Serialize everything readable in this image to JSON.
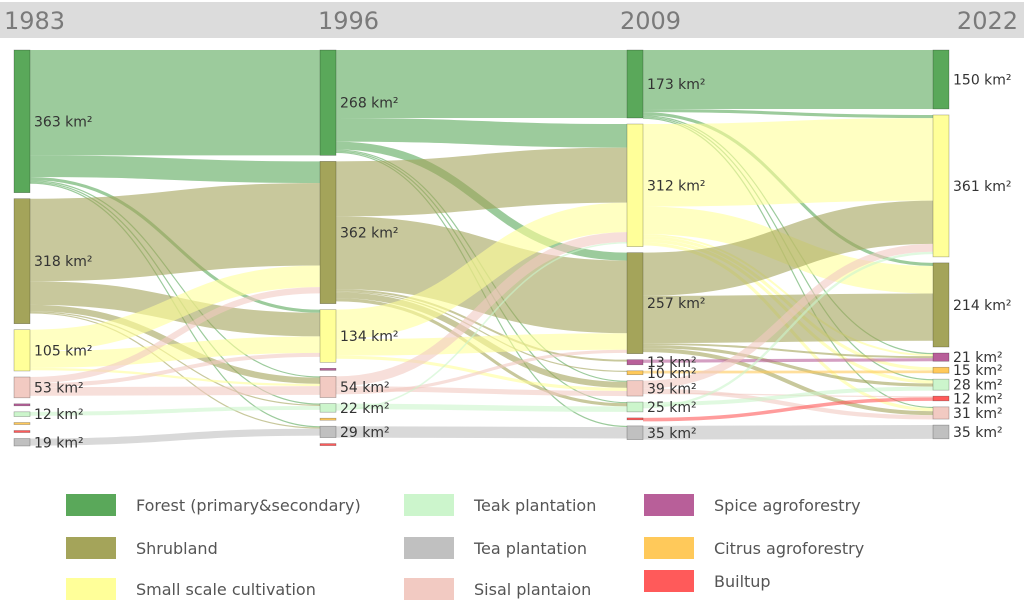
{
  "chart_data": {
    "type": "sankey",
    "title": "",
    "units": "km²",
    "years": [
      "1983",
      "1996",
      "2009",
      "2022"
    ],
    "categories": [
      {
        "id": "forest",
        "name": "Forest (primary&secondary)",
        "color": "#5aa85a"
      },
      {
        "id": "shrub",
        "name": "Shrubland",
        "color": "#a4a45a"
      },
      {
        "id": "small",
        "name": "Small scale cultivation",
        "color": "#ffff99"
      },
      {
        "id": "teak",
        "name": "Teak plantation",
        "color": "#ccf5cc"
      },
      {
        "id": "tea",
        "name": "Tea plantation",
        "color": "#c0c0c0"
      },
      {
        "id": "sisal",
        "name": "Sisal plantaion",
        "color": "#f2cac2"
      },
      {
        "id": "spice",
        "name": "Spice agroforestry",
        "color": "#b85f99"
      },
      {
        "id": "citrus",
        "name": "Citrus agroforestry",
        "color": "#ffc95a"
      },
      {
        "id": "builtup",
        "name": "Builtup",
        "color": "#ff5a5a"
      }
    ],
    "nodes": [
      {
        "col": 0,
        "cat": "forest",
        "value": 363,
        "label": "363 km²"
      },
      {
        "col": 0,
        "cat": "shrub",
        "value": 318,
        "label": "318 km²"
      },
      {
        "col": 0,
        "cat": "small",
        "value": 105,
        "label": "105 km²"
      },
      {
        "col": 0,
        "cat": "sisal",
        "value": 53,
        "label": "53 km²"
      },
      {
        "col": 0,
        "cat": "spice",
        "value": 0,
        "label": ""
      },
      {
        "col": 0,
        "cat": "teak",
        "value": 12,
        "label": "12 km²"
      },
      {
        "col": 0,
        "cat": "citrus",
        "value": 0,
        "label": ""
      },
      {
        "col": 0,
        "cat": "builtup",
        "value": 0,
        "label": ""
      },
      {
        "col": 0,
        "cat": "tea",
        "value": 19,
        "label": "19 km²"
      },
      {
        "col": 1,
        "cat": "forest",
        "value": 268,
        "label": "268 km²"
      },
      {
        "col": 1,
        "cat": "shrub",
        "value": 362,
        "label": "362 km²"
      },
      {
        "col": 1,
        "cat": "small",
        "value": 134,
        "label": "134 km²"
      },
      {
        "col": 1,
        "cat": "spice",
        "value": 0,
        "label": ""
      },
      {
        "col": 1,
        "cat": "sisal",
        "value": 54,
        "label": "54 km²"
      },
      {
        "col": 1,
        "cat": "teak",
        "value": 22,
        "label": "22 km²"
      },
      {
        "col": 1,
        "cat": "citrus",
        "value": 0,
        "label": ""
      },
      {
        "col": 1,
        "cat": "tea",
        "value": 29,
        "label": "29 km²"
      },
      {
        "col": 1,
        "cat": "builtup",
        "value": 0,
        "label": ""
      },
      {
        "col": 2,
        "cat": "forest",
        "value": 173,
        "label": "173 km²"
      },
      {
        "col": 2,
        "cat": "small",
        "value": 312,
        "label": "312 km²"
      },
      {
        "col": 2,
        "cat": "shrub",
        "value": 257,
        "label": "257 km²"
      },
      {
        "col": 2,
        "cat": "spice",
        "value": 13,
        "label": "13 km²"
      },
      {
        "col": 2,
        "cat": "citrus",
        "value": 10,
        "label": "10 km²"
      },
      {
        "col": 2,
        "cat": "sisal",
        "value": 39,
        "label": "39 km²"
      },
      {
        "col": 2,
        "cat": "teak",
        "value": 25,
        "label": "25 km²"
      },
      {
        "col": 2,
        "cat": "builtup",
        "value": 0,
        "label": ""
      },
      {
        "col": 2,
        "cat": "tea",
        "value": 35,
        "label": "35 km²"
      },
      {
        "col": 3,
        "cat": "forest",
        "value": 150,
        "label": "150 km²"
      },
      {
        "col": 3,
        "cat": "small",
        "value": 361,
        "label": "361 km²"
      },
      {
        "col": 3,
        "cat": "shrub",
        "value": 214,
        "label": "214 km²"
      },
      {
        "col": 3,
        "cat": "spice",
        "value": 21,
        "label": "21 km²"
      },
      {
        "col": 3,
        "cat": "citrus",
        "value": 15,
        "label": "15 km²"
      },
      {
        "col": 3,
        "cat": "teak",
        "value": 28,
        "label": "28 km²"
      },
      {
        "col": 3,
        "cat": "builtup",
        "value": 12,
        "label": "12 km²"
      },
      {
        "col": 3,
        "cat": "sisal",
        "value": 31,
        "label": "31 km²"
      },
      {
        "col": 3,
        "cat": "tea",
        "value": 35,
        "label": "35 km²"
      }
    ],
    "flows": [
      {
        "from": [
          0,
          "forest"
        ],
        "to": [
          1,
          "forest"
        ],
        "value": 268
      },
      {
        "from": [
          0,
          "forest"
        ],
        "to": [
          1,
          "shrub"
        ],
        "value": 55
      },
      {
        "from": [
          0,
          "forest"
        ],
        "to": [
          1,
          "small"
        ],
        "value": 8
      },
      {
        "from": [
          0,
          "forest"
        ],
        "to": [
          1,
          "sisal"
        ],
        "value": 3
      },
      {
        "from": [
          0,
          "forest"
        ],
        "to": [
          1,
          "teak"
        ],
        "value": 2
      },
      {
        "from": [
          0,
          "forest"
        ],
        "to": [
          1,
          "tea"
        ],
        "value": 2
      },
      {
        "from": [
          0,
          "shrub"
        ],
        "to": [
          1,
          "shrub"
        ],
        "value": 210
      },
      {
        "from": [
          0,
          "shrub"
        ],
        "to": [
          1,
          "small"
        ],
        "value": 60
      },
      {
        "from": [
          0,
          "shrub"
        ],
        "to": [
          1,
          "sisal"
        ],
        "value": 16
      },
      {
        "from": [
          0,
          "shrub"
        ],
        "to": [
          1,
          "teak"
        ],
        "value": 2
      },
      {
        "from": [
          0,
          "shrub"
        ],
        "to": [
          1,
          "tea"
        ],
        "value": 2
      },
      {
        "from": [
          0,
          "small"
        ],
        "to": [
          1,
          "shrub"
        ],
        "value": 55
      },
      {
        "from": [
          0,
          "small"
        ],
        "to": [
          1,
          "small"
        ],
        "value": 42
      },
      {
        "from": [
          0,
          "small"
        ],
        "to": [
          1,
          "sisal"
        ],
        "value": 6
      },
      {
        "from": [
          0,
          "sisal"
        ],
        "to": [
          1,
          "shrub"
        ],
        "value": 16
      },
      {
        "from": [
          0,
          "sisal"
        ],
        "to": [
          1,
          "small"
        ],
        "value": 10
      },
      {
        "from": [
          0,
          "sisal"
        ],
        "to": [
          1,
          "sisal"
        ],
        "value": 22
      },
      {
        "from": [
          0,
          "teak"
        ],
        "to": [
          1,
          "teak"
        ],
        "value": 10
      },
      {
        "from": [
          0,
          "tea"
        ],
        "to": [
          1,
          "tea"
        ],
        "value": 18
      },
      {
        "from": [
          1,
          "forest"
        ],
        "to": [
          2,
          "forest"
        ],
        "value": 173
      },
      {
        "from": [
          1,
          "forest"
        ],
        "to": [
          2,
          "small"
        ],
        "value": 60
      },
      {
        "from": [
          1,
          "forest"
        ],
        "to": [
          2,
          "shrub"
        ],
        "value": 20
      },
      {
        "from": [
          1,
          "forest"
        ],
        "to": [
          2,
          "sisal"
        ],
        "value": 3
      },
      {
        "from": [
          1,
          "forest"
        ],
        "to": [
          2,
          "teak"
        ],
        "value": 3
      },
      {
        "from": [
          1,
          "forest"
        ],
        "to": [
          2,
          "tea"
        ],
        "value": 3
      },
      {
        "from": [
          1,
          "shrub"
        ],
        "to": [
          2,
          "small"
        ],
        "value": 140
      },
      {
        "from": [
          1,
          "shrub"
        ],
        "to": [
          2,
          "shrub"
        ],
        "value": 185
      },
      {
        "from": [
          1,
          "shrub"
        ],
        "to": [
          2,
          "spice"
        ],
        "value": 5
      },
      {
        "from": [
          1,
          "shrub"
        ],
        "to": [
          2,
          "citrus"
        ],
        "value": 3
      },
      {
        "from": [
          1,
          "shrub"
        ],
        "to": [
          2,
          "sisal"
        ],
        "value": 15
      },
      {
        "from": [
          1,
          "shrub"
        ],
        "to": [
          2,
          "teak"
        ],
        "value": 8
      },
      {
        "from": [
          1,
          "small"
        ],
        "to": [
          2,
          "small"
        ],
        "value": 75
      },
      {
        "from": [
          1,
          "small"
        ],
        "to": [
          2,
          "shrub"
        ],
        "value": 42
      },
      {
        "from": [
          1,
          "small"
        ],
        "to": [
          2,
          "sisal"
        ],
        "value": 8
      },
      {
        "from": [
          1,
          "sisal"
        ],
        "to": [
          2,
          "small"
        ],
        "value": 25
      },
      {
        "from": [
          1,
          "sisal"
        ],
        "to": [
          2,
          "sisal"
        ],
        "value": 13
      },
      {
        "from": [
          1,
          "sisal"
        ],
        "to": [
          2,
          "shrub"
        ],
        "value": 8
      },
      {
        "from": [
          1,
          "teak"
        ],
        "to": [
          2,
          "teak"
        ],
        "value": 14
      },
      {
        "from": [
          1,
          "teak"
        ],
        "to": [
          2,
          "small"
        ],
        "value": 4
      },
      {
        "from": [
          1,
          "tea"
        ],
        "to": [
          2,
          "tea"
        ],
        "value": 29
      },
      {
        "from": [
          2,
          "forest"
        ],
        "to": [
          3,
          "forest"
        ],
        "value": 150
      },
      {
        "from": [
          2,
          "forest"
        ],
        "to": [
          3,
          "small"
        ],
        "value": 8
      },
      {
        "from": [
          2,
          "forest"
        ],
        "to": [
          3,
          "shrub"
        ],
        "value": 8
      },
      {
        "from": [
          2,
          "forest"
        ],
        "to": [
          3,
          "spice"
        ],
        "value": 3
      },
      {
        "from": [
          2,
          "forest"
        ],
        "to": [
          3,
          "teak"
        ],
        "value": 2
      },
      {
        "from": [
          2,
          "forest"
        ],
        "to": [
          3,
          "sisal"
        ],
        "value": 2
      },
      {
        "from": [
          2,
          "small"
        ],
        "to": [
          3,
          "small"
        ],
        "value": 210
      },
      {
        "from": [
          2,
          "small"
        ],
        "to": [
          3,
          "shrub"
        ],
        "value": 70
      },
      {
        "from": [
          2,
          "small"
        ],
        "to": [
          3,
          "spice"
        ],
        "value": 5
      },
      {
        "from": [
          2,
          "small"
        ],
        "to": [
          3,
          "citrus"
        ],
        "value": 8
      },
      {
        "from": [
          2,
          "small"
        ],
        "to": [
          3,
          "teak"
        ],
        "value": 8
      },
      {
        "from": [
          2,
          "small"
        ],
        "to": [
          3,
          "sisal"
        ],
        "value": 8
      },
      {
        "from": [
          2,
          "shrub"
        ],
        "to": [
          3,
          "small"
        ],
        "value": 110
      },
      {
        "from": [
          2,
          "shrub"
        ],
        "to": [
          3,
          "shrub"
        ],
        "value": 120
      },
      {
        "from": [
          2,
          "shrub"
        ],
        "to": [
          3,
          "spice"
        ],
        "value": 5
      },
      {
        "from": [
          2,
          "shrub"
        ],
        "to": [
          3,
          "teak"
        ],
        "value": 8
      },
      {
        "from": [
          2,
          "shrub"
        ],
        "to": [
          3,
          "sisal"
        ],
        "value": 10
      },
      {
        "from": [
          2,
          "spice"
        ],
        "to": [
          3,
          "spice"
        ],
        "value": 8
      },
      {
        "from": [
          2,
          "citrus"
        ],
        "to": [
          3,
          "citrus"
        ],
        "value": 7
      },
      {
        "from": [
          2,
          "sisal"
        ],
        "to": [
          3,
          "small"
        ],
        "value": 20
      },
      {
        "from": [
          2,
          "sisal"
        ],
        "to": [
          3,
          "sisal"
        ],
        "value": 11
      },
      {
        "from": [
          2,
          "sisal"
        ],
        "to": [
          3,
          "builtup"
        ],
        "value": 3
      },
      {
        "from": [
          2,
          "teak"
        ],
        "to": [
          3,
          "teak"
        ],
        "value": 10
      },
      {
        "from": [
          2,
          "teak"
        ],
        "to": [
          3,
          "small"
        ],
        "value": 6
      },
      {
        "from": [
          2,
          "builtup"
        ],
        "to": [
          3,
          "builtup"
        ],
        "value": 9
      },
      {
        "from": [
          2,
          "tea"
        ],
        "to": [
          3,
          "tea"
        ],
        "value": 35
      }
    ]
  }
}
